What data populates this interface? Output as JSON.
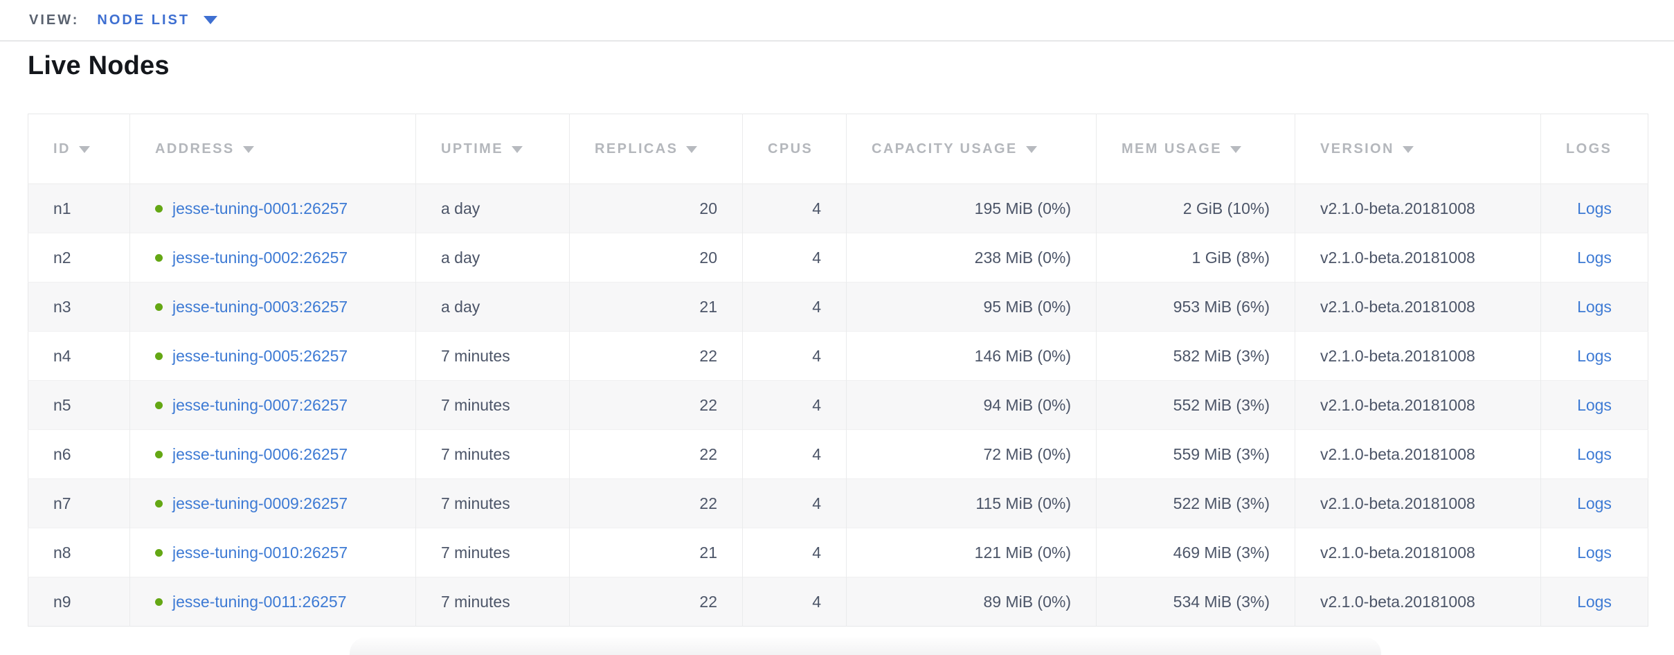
{
  "view_bar": {
    "label": "VIEW:",
    "selected": "NODE LIST"
  },
  "page": {
    "title": "Live Nodes"
  },
  "table": {
    "columns": [
      {
        "key": "id",
        "label": "ID",
        "sortable": true,
        "align": "left"
      },
      {
        "key": "address",
        "label": "ADDRESS",
        "sortable": true,
        "align": "left"
      },
      {
        "key": "uptime",
        "label": "UPTIME",
        "sortable": true,
        "align": "left"
      },
      {
        "key": "replicas",
        "label": "REPLICAS",
        "sortable": true,
        "align": "right"
      },
      {
        "key": "cpus",
        "label": "CPUS",
        "sortable": false,
        "align": "right"
      },
      {
        "key": "capacity_usage",
        "label": "CAPACITY USAGE",
        "sortable": true,
        "align": "right"
      },
      {
        "key": "mem_usage",
        "label": "MEM USAGE",
        "sortable": true,
        "align": "right"
      },
      {
        "key": "version",
        "label": "VERSION",
        "sortable": true,
        "align": "left"
      },
      {
        "key": "logs",
        "label": "LOGS",
        "sortable": false,
        "align": "center"
      }
    ],
    "rows": [
      {
        "id": "n1",
        "address": "jesse-tuning-0001:26257",
        "status": "healthy",
        "uptime": "a day",
        "replicas": "20",
        "cpus": "4",
        "capacity_usage": "195 MiB (0%)",
        "mem_usage": "2 GiB (10%)",
        "version": "v2.1.0-beta.20181008",
        "logs": "Logs"
      },
      {
        "id": "n2",
        "address": "jesse-tuning-0002:26257",
        "status": "healthy",
        "uptime": "a day",
        "replicas": "20",
        "cpus": "4",
        "capacity_usage": "238 MiB (0%)",
        "mem_usage": "1 GiB (8%)",
        "version": "v2.1.0-beta.20181008",
        "logs": "Logs"
      },
      {
        "id": "n3",
        "address": "jesse-tuning-0003:26257",
        "status": "healthy",
        "uptime": "a day",
        "replicas": "21",
        "cpus": "4",
        "capacity_usage": "95 MiB (0%)",
        "mem_usage": "953 MiB (6%)",
        "version": "v2.1.0-beta.20181008",
        "logs": "Logs"
      },
      {
        "id": "n4",
        "address": "jesse-tuning-0005:26257",
        "status": "healthy",
        "uptime": "7 minutes",
        "replicas": "22",
        "cpus": "4",
        "capacity_usage": "146 MiB (0%)",
        "mem_usage": "582 MiB (3%)",
        "version": "v2.1.0-beta.20181008",
        "logs": "Logs"
      },
      {
        "id": "n5",
        "address": "jesse-tuning-0007:26257",
        "status": "healthy",
        "uptime": "7 minutes",
        "replicas": "22",
        "cpus": "4",
        "capacity_usage": "94 MiB (0%)",
        "mem_usage": "552 MiB (3%)",
        "version": "v2.1.0-beta.20181008",
        "logs": "Logs"
      },
      {
        "id": "n6",
        "address": "jesse-tuning-0006:26257",
        "status": "healthy",
        "uptime": "7 minutes",
        "replicas": "22",
        "cpus": "4",
        "capacity_usage": "72 MiB (0%)",
        "mem_usage": "559 MiB (3%)",
        "version": "v2.1.0-beta.20181008",
        "logs": "Logs"
      },
      {
        "id": "n7",
        "address": "jesse-tuning-0009:26257",
        "status": "healthy",
        "uptime": "7 minutes",
        "replicas": "22",
        "cpus": "4",
        "capacity_usage": "115 MiB (0%)",
        "mem_usage": "522 MiB (3%)",
        "version": "v2.1.0-beta.20181008",
        "logs": "Logs"
      },
      {
        "id": "n8",
        "address": "jesse-tuning-0010:26257",
        "status": "healthy",
        "uptime": "7 minutes",
        "replicas": "21",
        "cpus": "4",
        "capacity_usage": "121 MiB (0%)",
        "mem_usage": "469 MiB (3%)",
        "version": "v2.1.0-beta.20181008",
        "logs": "Logs"
      },
      {
        "id": "n9",
        "address": "jesse-tuning-0011:26257",
        "status": "healthy",
        "uptime": "7 minutes",
        "replicas": "22",
        "cpus": "4",
        "capacity_usage": "89 MiB (0%)",
        "mem_usage": "534 MiB (3%)",
        "version": "v2.1.0-beta.20181008",
        "logs": "Logs"
      }
    ]
  },
  "icons": {
    "dropdown_caret": "caret-down-icon",
    "sort_caret": "sort-desc-icon",
    "node_status": "node-status-dot"
  },
  "colors": {
    "accent_blue": "#3e6fd1",
    "link_blue": "#3d7ad4",
    "healthy_green": "#64a714",
    "header_text": "#b4b7bc",
    "cell_text": "#4c5568",
    "row_stripe": "#f7f7f8",
    "heading_text": "#14171c"
  }
}
